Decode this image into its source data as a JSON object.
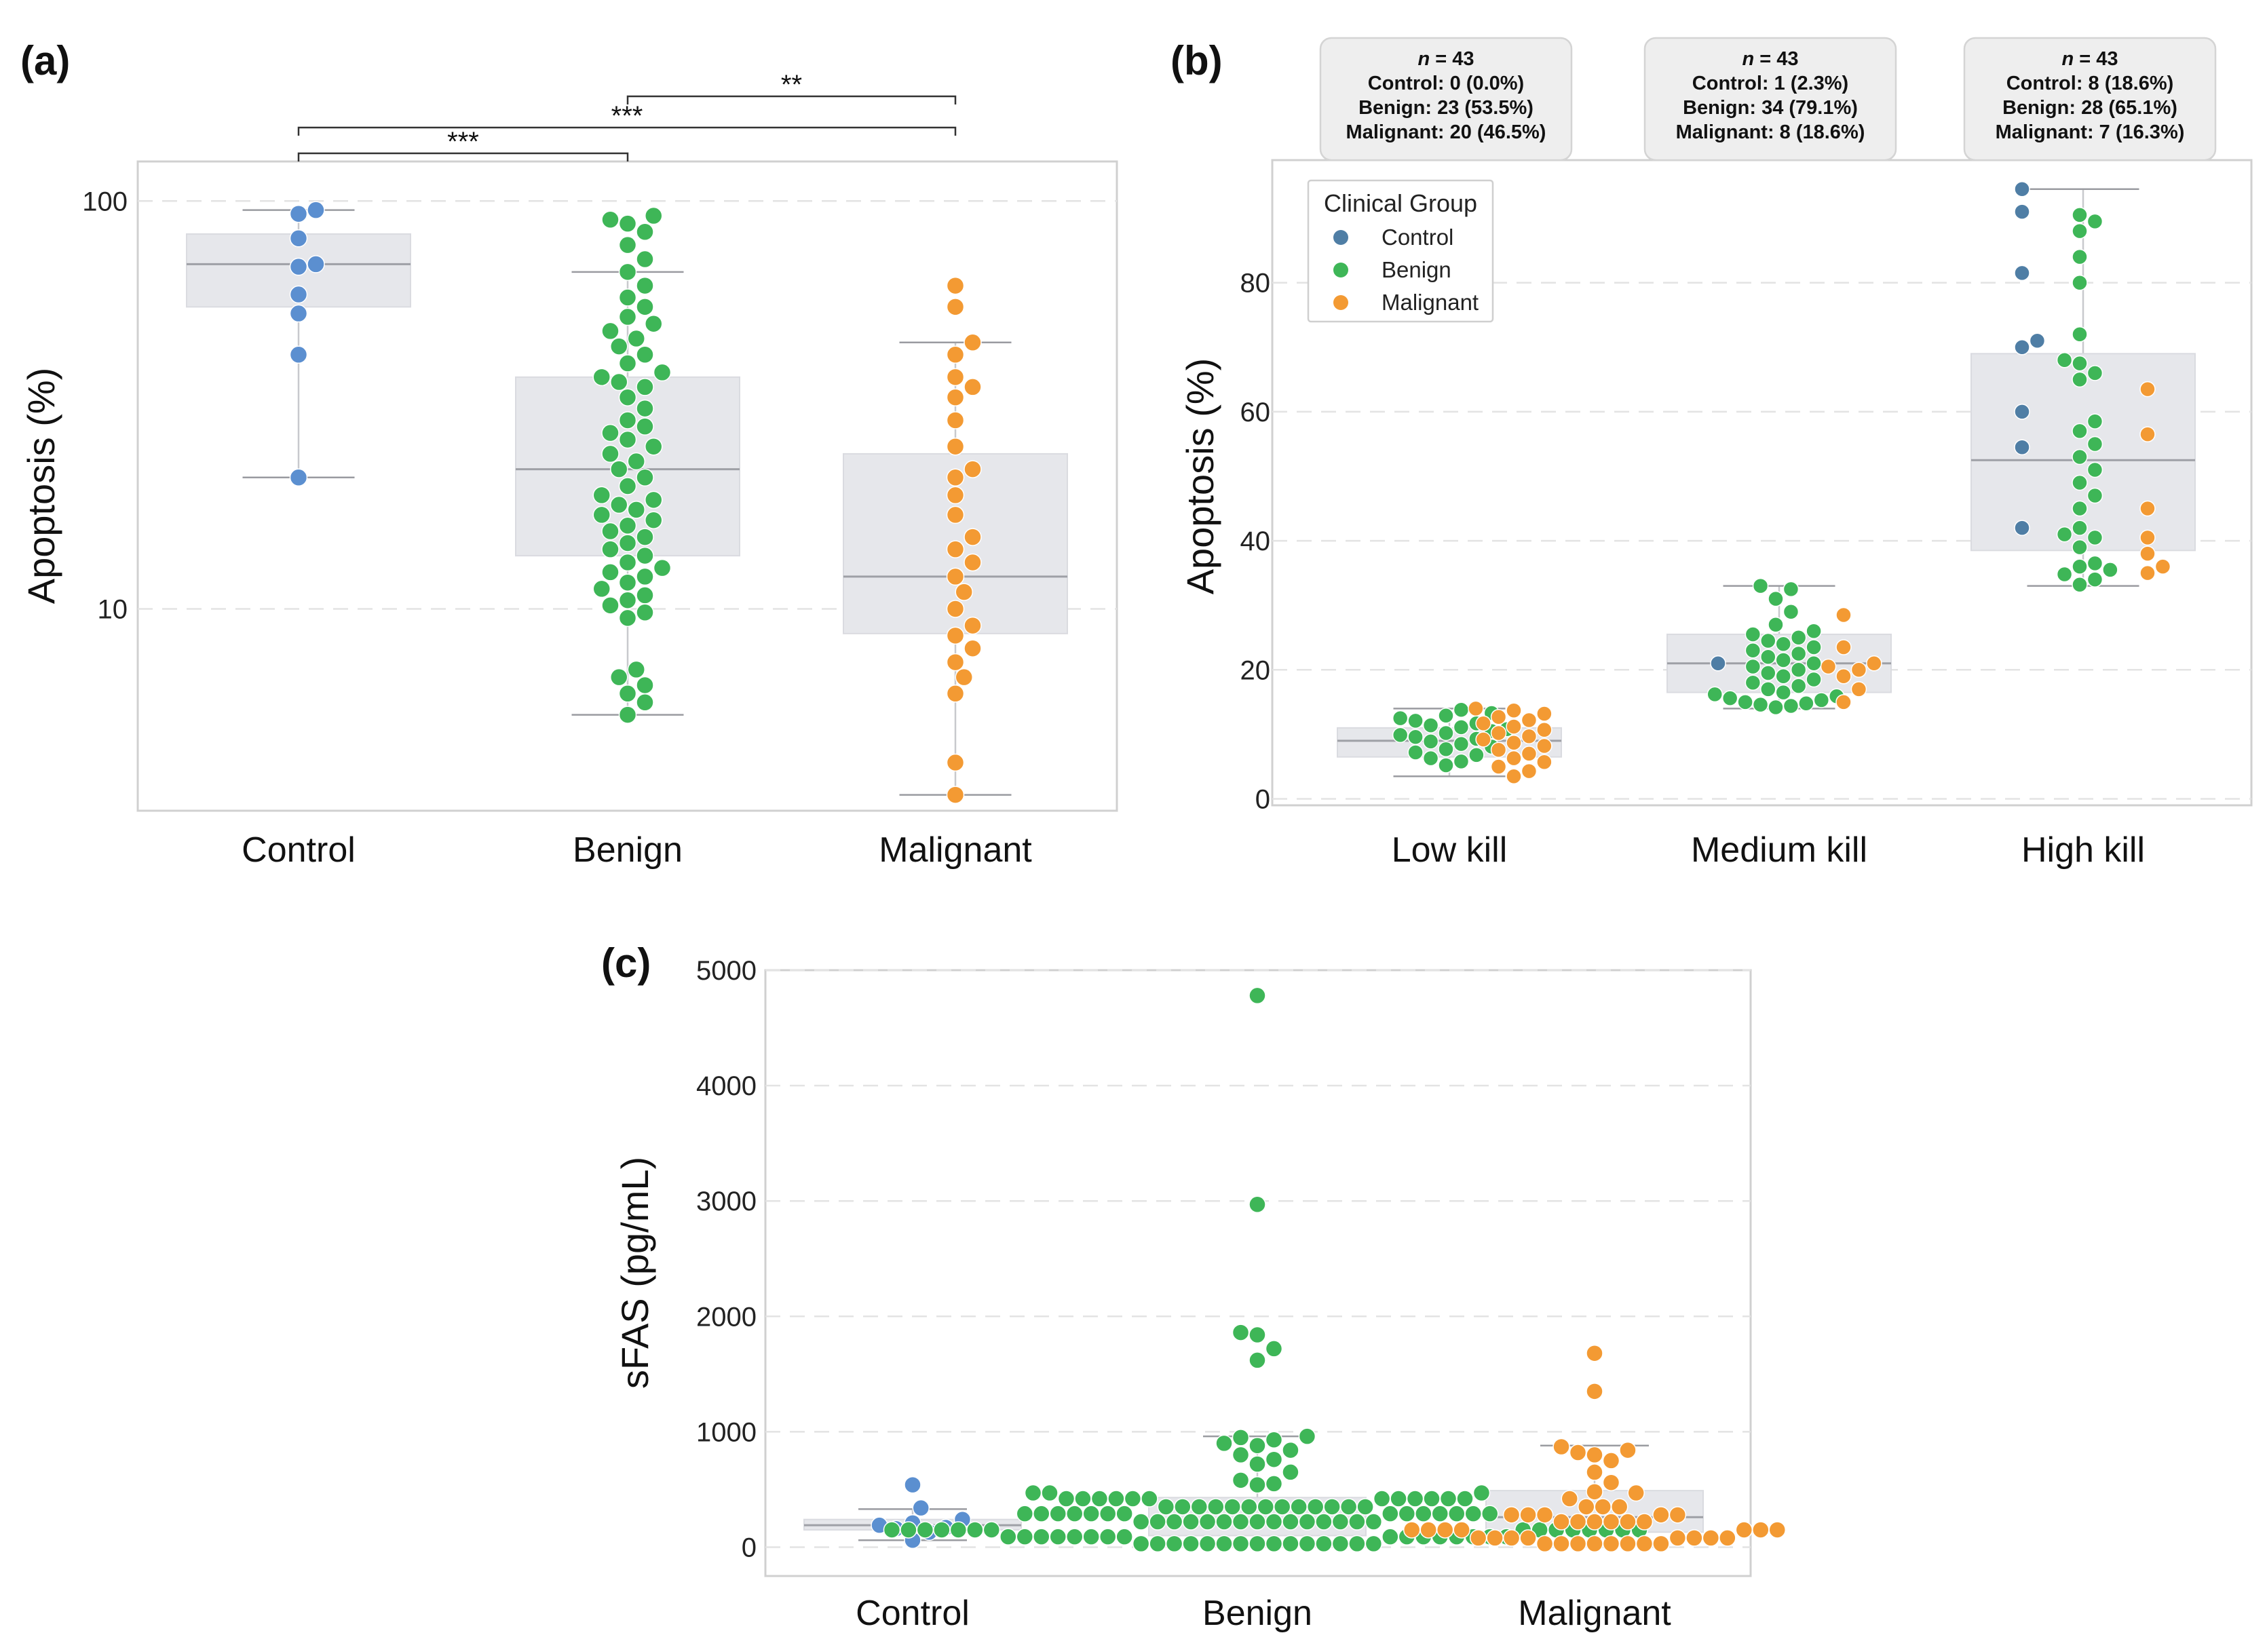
{
  "colors": {
    "control": "#5b8fd0",
    "benign": "#3eb657",
    "malignant": "#f39a33",
    "control_b": "#4f7ea5",
    "box": "#e6e7eb",
    "median": "#9ea0a6",
    "grid": "#e3e3e3",
    "frame": "#d0d0d0",
    "bracket": "#333333"
  },
  "chart_data": [
    {
      "id": "a",
      "panel_label": "(a)",
      "type": "box-swarm",
      "yscale": "log",
      "ylabel": "Apoptosis (%)",
      "ylim": [
        3.2,
        125
      ],
      "yticks": [
        10,
        100
      ],
      "ytick_labels": [
        "10",
        "100"
      ],
      "categories": [
        "Control",
        "Benign",
        "Malignant"
      ],
      "boxes": [
        {
          "category": "Control",
          "whisker_low": 21,
          "q1": 55,
          "median": 70,
          "q3": 83,
          "whisker_high": 95
        },
        {
          "category": "Benign",
          "whisker_low": 5.5,
          "q1": 13.5,
          "median": 22,
          "q3": 37,
          "whisker_high": 67
        },
        {
          "category": "Malignant",
          "whisker_low": 3.5,
          "q1": 8.7,
          "median": 12,
          "q3": 24,
          "whisker_high": 45
        }
      ],
      "series": [
        {
          "name": "Control",
          "values": [
            21,
            42,
            53,
            59,
            69,
            70,
            81,
            93,
            95
          ]
        },
        {
          "name": "Benign",
          "values": [
            5.5,
            5.9,
            6.2,
            6.5,
            6.8,
            7.1,
            9.5,
            9.8,
            10.2,
            10.5,
            10.8,
            11.2,
            11.6,
            12,
            12.3,
            12.6,
            13,
            13.5,
            14,
            14.5,
            15,
            15.5,
            16,
            16.5,
            17,
            17.5,
            18,
            18.5,
            19,
            20,
            21,
            22,
            23,
            24,
            25,
            26,
            27,
            28,
            29,
            31,
            33,
            35,
            36,
            37,
            38,
            40,
            42,
            44,
            46,
            48,
            50,
            52,
            55,
            58,
            62,
            67,
            72,
            78,
            84,
            88,
            90,
            92
          ]
        },
        {
          "name": "Malignant",
          "values": [
            3.5,
            4.2,
            6.2,
            6.8,
            7.4,
            8,
            8.6,
            9.1,
            10,
            11,
            12,
            13,
            14,
            15,
            17,
            19,
            21,
            22,
            25,
            29,
            33,
            35,
            37,
            42,
            45,
            55,
            62
          ]
        }
      ],
      "significance": [
        {
          "from": "Control",
          "to": "Benign",
          "label": "***"
        },
        {
          "from": "Control",
          "to": "Malignant",
          "label": "***"
        },
        {
          "from": "Benign",
          "to": "Malignant",
          "label": "**"
        }
      ]
    },
    {
      "id": "b",
      "panel_label": "(b)",
      "type": "box-swarm",
      "yscale": "linear",
      "ylabel": "Apoptosis (%)",
      "ylim": [
        -1,
        99
      ],
      "yticks": [
        0,
        20,
        40,
        60,
        80
      ],
      "ytick_labels": [
        "0",
        "20",
        "40",
        "60",
        "80"
      ],
      "categories": [
        "Low kill",
        "Medium kill",
        "High kill"
      ],
      "legend": {
        "title": "Clinical Group",
        "position": "top-left",
        "entries": [
          "Control",
          "Benign",
          "Malignant"
        ]
      },
      "annotations": [
        {
          "category": "Low kill",
          "n_label": "n",
          "n_value": "= 43",
          "lines": [
            "Control: 0 (0.0%)",
            "Benign: 23 (53.5%)",
            "Malignant: 20 (46.5%)"
          ]
        },
        {
          "category": "Medium kill",
          "n_label": "n",
          "n_value": "= 43",
          "lines": [
            "Control: 1 (2.3%)",
            "Benign: 34 (79.1%)",
            "Malignant: 8 (18.6%)"
          ]
        },
        {
          "category": "High kill",
          "n_label": "n",
          "n_value": "= 43",
          "lines": [
            "Control: 8 (18.6%)",
            "Benign: 28 (65.1%)",
            "Malignant: 7 (16.3%)"
          ]
        }
      ],
      "boxes": [
        {
          "category": "Low kill",
          "whisker_low": 3.5,
          "q1": 6.5,
          "median": 9,
          "q3": 11,
          "whisker_high": 14
        },
        {
          "category": "Medium kill",
          "whisker_low": 14,
          "q1": 16.5,
          "median": 21,
          "q3": 25.5,
          "whisker_high": 33
        },
        {
          "category": "High kill",
          "whisker_low": 33,
          "q1": 38.5,
          "median": 52.5,
          "q3": 69,
          "whisker_high": 94.5
        }
      ],
      "series": [
        {
          "name": "Control",
          "groups": {
            "Low kill": [],
            "Medium kill": [
              21
            ],
            "High kill": [
              42,
              54.5,
              60,
              70,
              71,
              81.5,
              91,
              94.5
            ]
          }
        },
        {
          "name": "Benign",
          "groups": {
            "Low kill": [
              5.2,
              5.8,
              6.3,
              6.8,
              7.2,
              7.7,
              8.1,
              8.5,
              8.9,
              9.3,
              9.6,
              9.9,
              10.2,
              10.5,
              10.8,
              11.1,
              11.4,
              11.7,
              12.1,
              12.5,
              12.9,
              13.3,
              13.8
            ],
            "Medium kill": [
              14.2,
              14.4,
              14.6,
              14.8,
              15,
              15.3,
              15.6,
              15.9,
              16.2,
              16.5,
              17,
              17.5,
              18,
              18.5,
              19,
              19.5,
              20,
              20.5,
              21,
              21.5,
              22,
              22.5,
              23,
              23.5,
              24,
              24.5,
              25,
              25.5,
              26,
              27,
              29,
              31,
              32.5,
              33
            ],
            "High kill": [
              33.2,
              34,
              34.8,
              35.5,
              36,
              36.5,
              39,
              40.5,
              42,
              45,
              47,
              49,
              51,
              53,
              55,
              57,
              58.5,
              65,
              67.5,
              68,
              72,
              80,
              84,
              88,
              89.5,
              90.5,
              66,
              41
            ]
          }
        },
        {
          "name": "Malignant",
          "groups": {
            "Low kill": [
              3.5,
              4.3,
              5,
              5.7,
              6.3,
              7,
              7.6,
              8.2,
              8.7,
              9.2,
              9.7,
              10.2,
              10.7,
              11.2,
              11.7,
              12.2,
              12.7,
              13.2,
              13.7,
              14
            ],
            "Medium kill": [
              15,
              17,
              19,
              20,
              20.5,
              21,
              23.5,
              28.5
            ],
            "High kill": [
              35,
              36,
              38,
              40.5,
              45,
              56.5,
              63.5
            ]
          }
        }
      ]
    },
    {
      "id": "c",
      "panel_label": "(c)",
      "type": "box-swarm",
      "yscale": "linear",
      "ylabel": "sFAS (pg/mL)",
      "ylim": [
        -250,
        5000
      ],
      "yticks": [
        0,
        1000,
        2000,
        3000,
        4000,
        5000
      ],
      "ytick_labels": [
        "0",
        "1000",
        "2000",
        "3000",
        "4000",
        "5000"
      ],
      "categories": [
        "Control",
        "Benign",
        "Malignant"
      ],
      "boxes": [
        {
          "category": "Control",
          "whisker_low": 60,
          "q1": 150,
          "median": 190,
          "q3": 240,
          "whisker_high": 330
        },
        {
          "category": "Benign",
          "whisker_low": 30,
          "q1": 100,
          "median": 230,
          "q3": 430,
          "whisker_high": 960
        },
        {
          "category": "Malignant",
          "whisker_low": 40,
          "q1": 130,
          "median": 260,
          "q3": 490,
          "whisker_high": 880
        }
      ],
      "series": [
        {
          "name": "Control",
          "values": [
            60,
            130,
            160,
            170,
            190,
            210,
            240,
            340,
            540
          ]
        },
        {
          "name": "Benign",
          "values": [
            30,
            30,
            30,
            30,
            30,
            30,
            30,
            30,
            30,
            30,
            30,
            30,
            30,
            30,
            30,
            90,
            90,
            90,
            90,
            90,
            90,
            90,
            90,
            90,
            90,
            90,
            90,
            90,
            90,
            90,
            90,
            150,
            150,
            150,
            150,
            150,
            150,
            150,
            150,
            150,
            150,
            150,
            150,
            150,
            150,
            150,
            220,
            220,
            220,
            220,
            220,
            220,
            220,
            220,
            220,
            220,
            220,
            220,
            220,
            220,
            220,
            290,
            290,
            290,
            290,
            290,
            290,
            290,
            290,
            290,
            290,
            290,
            290,
            290,
            290,
            350,
            350,
            350,
            350,
            350,
            350,
            350,
            350,
            350,
            350,
            350,
            350,
            350,
            420,
            420,
            420,
            420,
            420,
            420,
            420,
            420,
            420,
            420,
            420,
            420,
            470,
            470,
            470,
            540,
            550,
            580,
            650,
            720,
            760,
            800,
            840,
            880,
            900,
            930,
            950,
            960,
            1620,
            1720,
            1840,
            1860,
            2970,
            4780
          ]
        },
        {
          "name": "Malignant",
          "values": [
            30,
            30,
            30,
            30,
            30,
            30,
            30,
            30,
            80,
            80,
            80,
            80,
            80,
            80,
            80,
            80,
            150,
            150,
            150,
            150,
            150,
            150,
            150,
            220,
            220,
            220,
            220,
            220,
            220,
            280,
            280,
            280,
            280,
            280,
            350,
            350,
            350,
            420,
            470,
            480,
            560,
            650,
            750,
            800,
            820,
            840,
            870,
            1350,
            1680
          ]
        }
      ]
    }
  ]
}
